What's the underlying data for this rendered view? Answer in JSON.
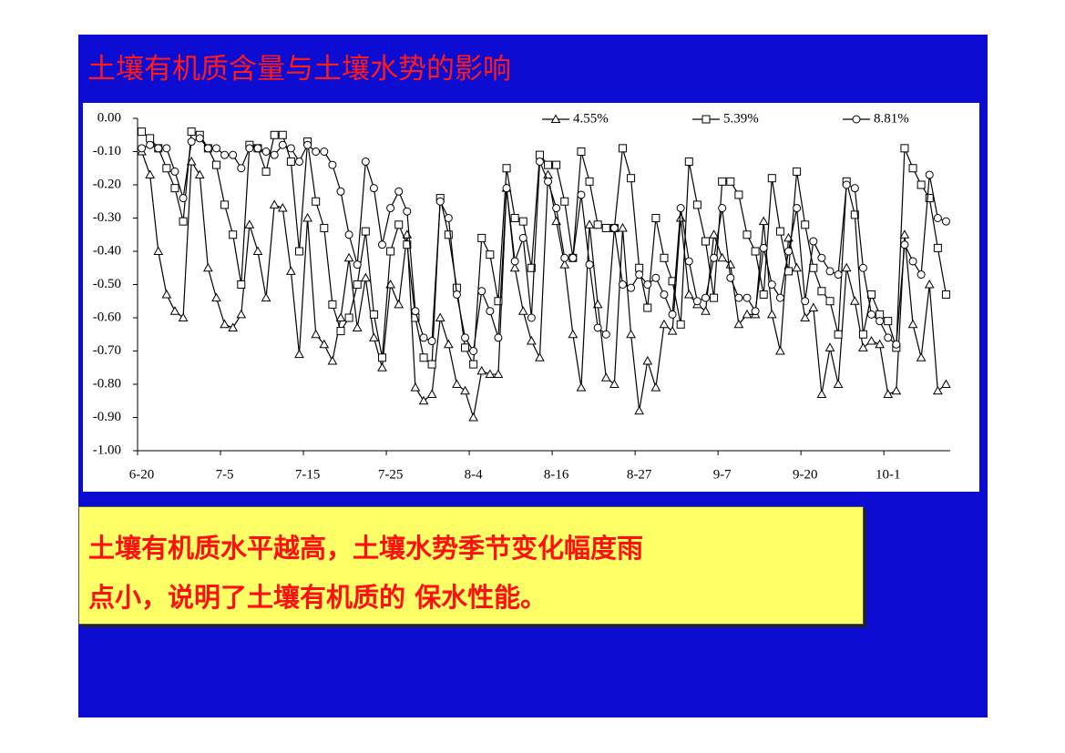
{
  "slide": {
    "title": "土壤有机质含量与土壤水势的影响",
    "caption": [
      "土壤有机质水平越高，土壤水势季节变化幅度雨",
      "点小，说明了土壤有机质的 保水性能。"
    ]
  },
  "chart_data": {
    "type": "line",
    "legend": "top",
    "categories": [
      "6-20",
      null,
      null,
      null,
      null,
      null,
      null,
      null,
      null,
      null,
      "7-5",
      null,
      null,
      null,
      null,
      null,
      null,
      null,
      null,
      null,
      "7-15",
      null,
      null,
      null,
      null,
      null,
      null,
      null,
      null,
      null,
      "7-25",
      null,
      null,
      null,
      null,
      null,
      null,
      null,
      null,
      null,
      "8-4",
      null,
      null,
      null,
      null,
      null,
      null,
      null,
      null,
      null,
      "8-16",
      null,
      null,
      null,
      null,
      null,
      null,
      null,
      null,
      null,
      "8-27",
      null,
      null,
      null,
      null,
      null,
      null,
      null,
      null,
      null,
      "9-7",
      null,
      null,
      null,
      null,
      null,
      null,
      null,
      null,
      null,
      "9-20",
      null,
      null,
      null,
      null,
      null,
      null,
      null,
      null,
      null,
      "10-1",
      null,
      null,
      null,
      null,
      null,
      null,
      null
    ],
    "ylim": [
      -1,
      0
    ],
    "yticks": [
      {
        "value": 0,
        "label": "0.00"
      },
      {
        "value": -0.1,
        "label": "-0.10"
      },
      {
        "value": -0.2,
        "label": "-0.20"
      },
      {
        "value": -0.3,
        "label": "-0.30"
      },
      {
        "value": -0.4,
        "label": "-0.40"
      },
      {
        "value": -0.5,
        "label": "-0.50"
      },
      {
        "value": -0.6,
        "label": "-0.60"
      },
      {
        "value": -0.7,
        "label": "-0.70"
      },
      {
        "value": -0.8,
        "label": "-0.80"
      },
      {
        "value": -0.9,
        "label": "-0.90"
      },
      {
        "value": -1,
        "label": "-1.00"
      }
    ],
    "series": [
      {
        "name": "4.55%",
        "color": "#000000",
        "marker": "triangle",
        "values": [
          -0.1,
          -0.17,
          -0.4,
          -0.53,
          -0.58,
          -0.6,
          -0.13,
          -0.17,
          -0.45,
          -0.54,
          -0.62,
          -0.63,
          -0.59,
          -0.32,
          -0.4,
          -0.54,
          -0.26,
          -0.27,
          -0.46,
          -0.71,
          -0.3,
          -0.65,
          -0.68,
          -0.73,
          -0.6,
          -0.42,
          -0.63,
          -0.48,
          -0.66,
          -0.75,
          -0.5,
          -0.56,
          -0.35,
          -0.81,
          -0.85,
          -0.83,
          -0.6,
          -0.68,
          -0.8,
          -0.82,
          -0.9,
          -0.76,
          -0.77,
          -0.77,
          -0.21,
          -0.45,
          -0.58,
          -0.67,
          -0.72,
          -0.17,
          -0.31,
          -0.44,
          -0.65,
          -0.81,
          -0.32,
          -0.56,
          -0.78,
          -0.8,
          -0.33,
          -0.65,
          -0.88,
          -0.73,
          -0.81,
          -0.62,
          -0.64,
          -0.3,
          -0.53,
          -0.56,
          -0.58,
          -0.35,
          -0.42,
          -0.44,
          -0.62,
          -0.59,
          -0.59,
          -0.31,
          -0.59,
          -0.7,
          -0.36,
          -0.45,
          -0.6,
          -0.57,
          -0.83,
          -0.69,
          -0.8,
          -0.45,
          -0.55,
          -0.69,
          -0.67,
          -0.68,
          -0.83,
          -0.82,
          -0.35,
          -0.62,
          -0.72,
          -0.5,
          -0.82,
          -0.8
        ]
      },
      {
        "name": "5.39%",
        "color": "#000000",
        "marker": "square",
        "values": [
          -0.04,
          -0.06,
          -0.09,
          -0.15,
          -0.21,
          -0.31,
          -0.04,
          -0.05,
          -0.09,
          -0.14,
          -0.26,
          -0.35,
          -0.5,
          -0.08,
          -0.09,
          -0.16,
          -0.05,
          -0.05,
          -0.13,
          -0.4,
          -0.07,
          -0.25,
          -0.33,
          -0.56,
          -0.64,
          -0.6,
          -0.5,
          -0.34,
          -0.59,
          -0.72,
          -0.4,
          -0.32,
          -0.38,
          -0.6,
          -0.72,
          -0.74,
          -0.24,
          -0.35,
          -0.51,
          -0.69,
          -0.74,
          -0.36,
          -0.41,
          -0.55,
          -0.15,
          -0.3,
          -0.31,
          -0.45,
          -0.11,
          -0.14,
          -0.14,
          -0.25,
          -0.42,
          -0.1,
          -0.19,
          -0.32,
          -0.33,
          -0.33,
          -0.09,
          -0.18,
          -0.45,
          -0.57,
          -0.3,
          -0.42,
          -0.49,
          -0.62,
          -0.13,
          -0.26,
          -0.37,
          -0.54,
          -0.19,
          -0.19,
          -0.23,
          -0.35,
          -0.4,
          -0.53,
          -0.18,
          -0.34,
          -0.46,
          -0.16,
          -0.32,
          -0.45,
          -0.52,
          -0.55,
          -0.65,
          -0.19,
          -0.29,
          -0.65,
          -0.53,
          -0.59,
          -0.61,
          -0.69,
          -0.09,
          -0.15,
          -0.2,
          -0.24,
          -0.39,
          -0.53
        ]
      },
      {
        "name": "8.81%",
        "color": "#000000",
        "marker": "circle",
        "values": [
          -0.09,
          -0.08,
          -0.09,
          -0.09,
          -0.16,
          -0.24,
          -0.07,
          -0.06,
          -0.09,
          -0.09,
          -0.11,
          -0.11,
          -0.15,
          -0.09,
          -0.09,
          -0.1,
          -0.11,
          -0.08,
          -0.09,
          -0.13,
          -0.08,
          -0.1,
          -0.1,
          -0.14,
          -0.22,
          -0.35,
          -0.44,
          -0.13,
          -0.21,
          -0.38,
          -0.27,
          -0.22,
          -0.28,
          -0.58,
          -0.66,
          -0.67,
          -0.25,
          -0.3,
          -0.53,
          -0.66,
          -0.7,
          -0.52,
          -0.58,
          -0.66,
          -0.21,
          -0.43,
          -0.36,
          -0.6,
          -0.13,
          -0.19,
          -0.27,
          -0.42,
          -0.42,
          -0.23,
          -0.44,
          -0.63,
          -0.65,
          -0.33,
          -0.5,
          -0.51,
          -0.47,
          -0.5,
          -0.48,
          -0.53,
          -0.59,
          -0.27,
          -0.43,
          -0.55,
          -0.54,
          -0.42,
          -0.27,
          -0.48,
          -0.54,
          -0.54,
          -0.58,
          -0.39,
          -0.5,
          -0.54,
          -0.4,
          -0.27,
          -0.55,
          -0.37,
          -0.42,
          -0.46,
          -0.47,
          -0.2,
          -0.21,
          -0.45,
          -0.59,
          -0.61,
          -0.66,
          -0.68,
          -0.38,
          -0.43,
          -0.47,
          -0.17,
          -0.3,
          -0.31
        ]
      }
    ]
  }
}
